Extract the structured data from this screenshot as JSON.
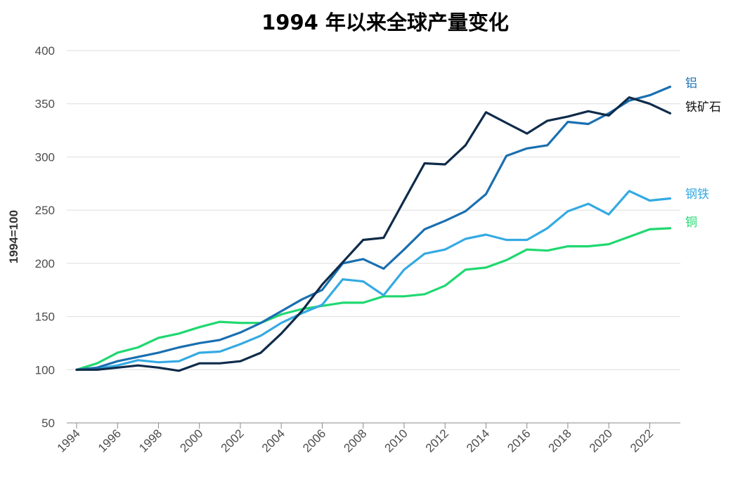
{
  "chart_data": {
    "type": "line",
    "title": "1994 年以来全球产量变化",
    "xlabel": "",
    "ylabel": "1994=100",
    "ylim": [
      50,
      400
    ],
    "yticks": [
      50,
      100,
      150,
      200,
      250,
      300,
      350,
      400
    ],
    "xlim": [
      1994,
      2023
    ],
    "xticks": [
      1994,
      1996,
      1998,
      2000,
      2002,
      2004,
      2006,
      2008,
      2010,
      2012,
      2014,
      2016,
      2018,
      2020,
      2022
    ],
    "grid": "horizontal",
    "legend": "inline labels at right end of lines",
    "x": [
      1994,
      1995,
      1996,
      1997,
      1998,
      1999,
      2000,
      2001,
      2002,
      2003,
      2004,
      2005,
      2006,
      2007,
      2008,
      2009,
      2010,
      2011,
      2012,
      2013,
      2014,
      2015,
      2016,
      2017,
      2018,
      2019,
      2020,
      2021,
      2022,
      2023
    ],
    "series": [
      {
        "name": "铁矿石",
        "color": "#0f2b4a",
        "values": [
          100,
          100,
          102,
          104,
          102,
          99,
          106,
          106,
          108,
          116,
          134,
          155,
          180,
          201,
          222,
          224,
          259,
          294,
          293,
          311,
          342,
          332,
          322,
          334,
          338,
          343,
          339,
          356,
          350,
          341
        ]
      },
      {
        "name": "铝",
        "color": "#1a6fb0",
        "values": [
          100,
          102,
          108,
          112,
          116,
          121,
          125,
          128,
          135,
          144,
          155,
          166,
          175,
          200,
          204,
          195,
          213,
          232,
          240,
          249,
          265,
          301,
          308,
          311,
          333,
          331,
          341,
          353,
          358,
          366
        ]
      },
      {
        "name": "钢铁",
        "color": "#34aae3",
        "values": [
          100,
          101,
          104,
          109,
          107,
          108,
          116,
          117,
          124,
          132,
          144,
          153,
          161,
          185,
          183,
          170,
          194,
          209,
          213,
          223,
          227,
          222,
          222,
          233,
          249,
          256,
          246,
          268,
          259,
          261
        ]
      },
      {
        "name": "铜",
        "color": "#1fd870",
        "values": [
          100,
          106,
          116,
          121,
          130,
          134,
          140,
          145,
          144,
          144,
          152,
          157,
          160,
          163,
          163,
          169,
          169,
          171,
          179,
          194,
          196,
          203,
          213,
          212,
          216,
          216,
          218,
          225,
          232,
          233
        ]
      }
    ]
  }
}
